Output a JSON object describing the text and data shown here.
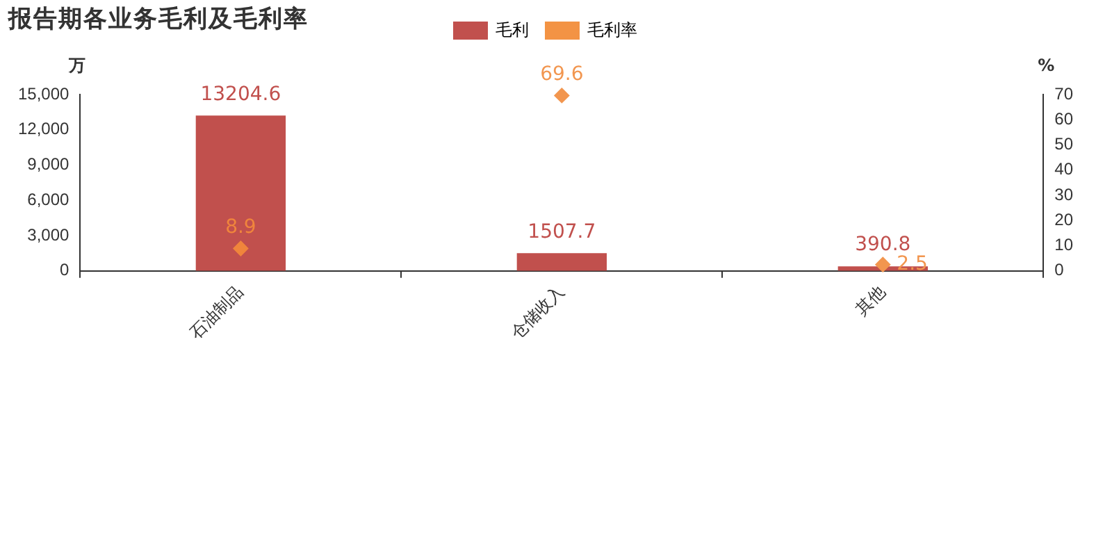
{
  "chart_data": {
    "type": "bar",
    "title": "报告期各业务毛利及毛利率",
    "ylabel": "万",
    "y2label": "%",
    "categories": [
      "石油制品",
      "仓储收入",
      "其他"
    ],
    "series": [
      {
        "name": "毛利",
        "color": "#c1504d",
        "values": [
          13204.6,
          1507.7,
          390.8
        ]
      },
      {
        "name": "毛利率",
        "type": "scatter",
        "axis": "y2",
        "color": "#f39344",
        "colors": [
          "#f0853c",
          "#f2964f",
          "#f2964f"
        ],
        "values": [
          8.9,
          69.6,
          2.5
        ]
      }
    ],
    "ylim": [
      0,
      15000
    ],
    "yticks": [
      0,
      {
        "value": 3000,
        "label": "3,000"
      },
      {
        "value": 6000,
        "label": "6,000"
      },
      {
        "value": 9000,
        "label": "9,000"
      },
      {
        "value": 12000,
        "label": "12,000"
      },
      {
        "value": 15000,
        "label": "15,000"
      }
    ],
    "y2lim": [
      0,
      70
    ],
    "y2ticks": [
      0,
      10,
      20,
      30,
      40,
      50,
      60,
      70
    ],
    "marker": "diamond",
    "data_labels": true,
    "grid": false,
    "legend": "top"
  }
}
